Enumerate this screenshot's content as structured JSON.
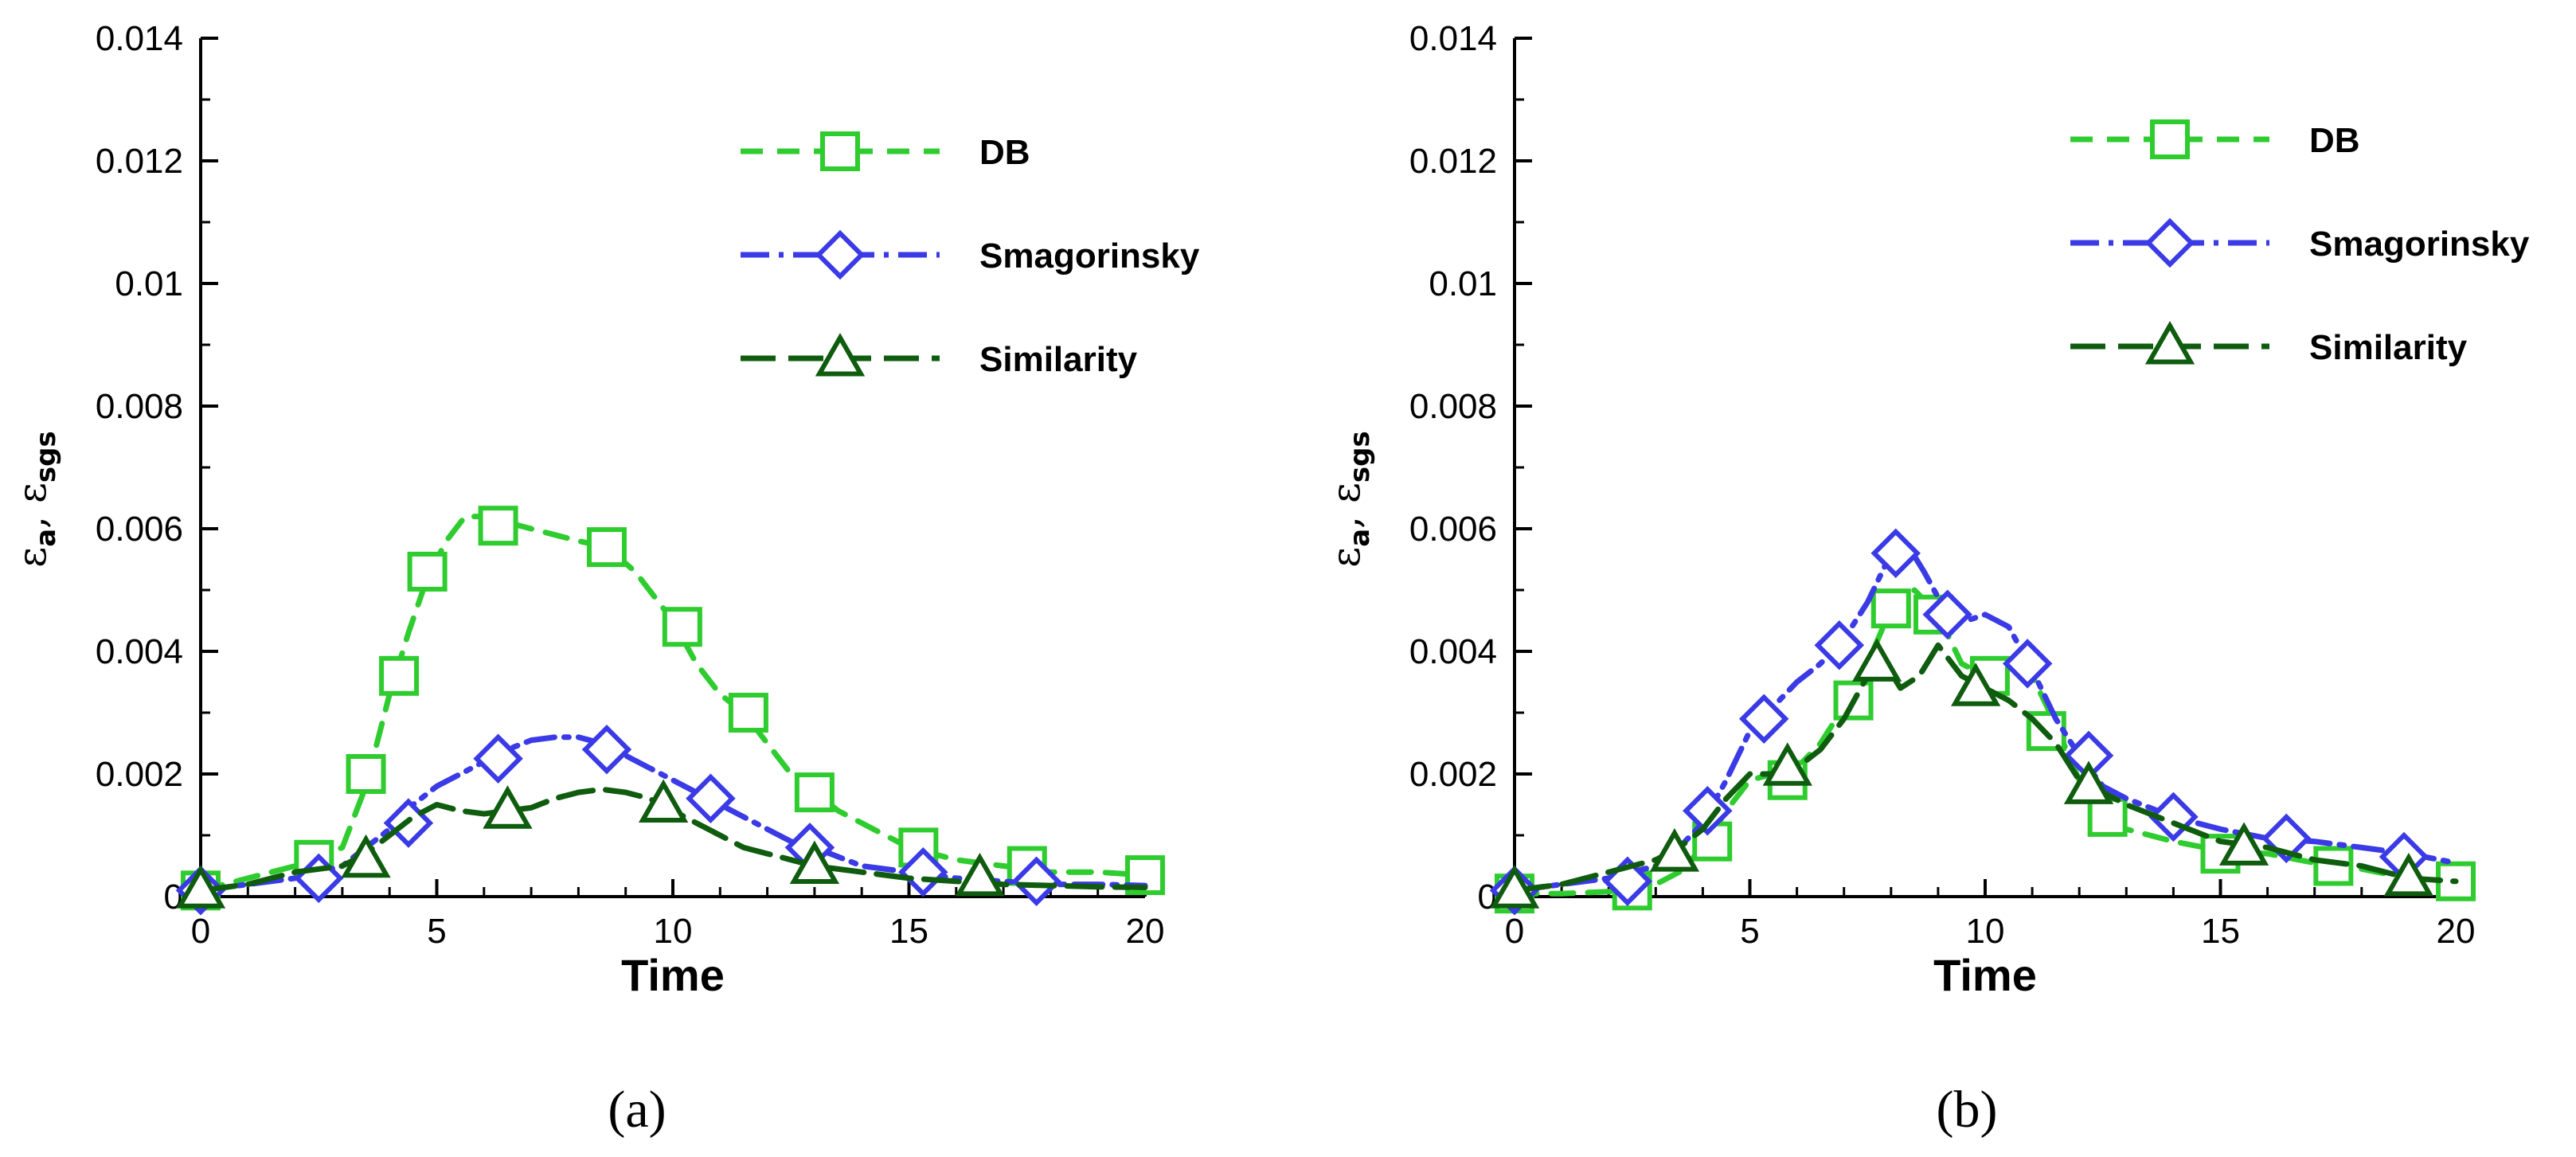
{
  "chart_data": [
    {
      "type": "line",
      "panel": "a",
      "caption": "(a)",
      "xlabel": "Time",
      "ylabel_symbol": "ε",
      "ylabel_sub1": "a",
      "ylabel_sep": ", ",
      "ylabel_sub2": "sgs",
      "xlim": [
        0,
        20
      ],
      "ylim": [
        0,
        0.014
      ],
      "xticks": [
        0,
        5,
        10,
        20
      ],
      "xticks_all": [
        0,
        5,
        10,
        15,
        20
      ],
      "yticks": [
        0,
        0.002,
        0.004,
        0.006,
        0.008,
        0.01,
        0.012,
        0.014
      ],
      "ytick_labels": [
        "0",
        "0.002",
        "0.004",
        "0.006",
        "0.008",
        "0.01",
        "0.012",
        "0.014"
      ],
      "xtick_labels": [
        "0",
        "5",
        "10",
        "15",
        "20"
      ],
      "legend_position": "top-right",
      "series": [
        {
          "name": "DB",
          "color": "#2ecc2e",
          "dash": "28,18",
          "marker": "square",
          "x": [
            0,
            1,
            2,
            3,
            3.5,
            4,
            4.4,
            4.8,
            5.2,
            5.6,
            6,
            6.5,
            7,
            7.5,
            8,
            8.6,
            9.2,
            10,
            10.5,
            11,
            11.5,
            12,
            12.5,
            13,
            13.5,
            14,
            15,
            16,
            17,
            18,
            19,
            20
          ],
          "y": [
            0.0001,
            0.0003,
            0.0005,
            0.0008,
            0.0018,
            0.0033,
            0.0043,
            0.0052,
            0.0058,
            0.0062,
            0.0062,
            0.0061,
            0.006,
            0.0059,
            0.0058,
            0.0057,
            0.0053,
            0.0045,
            0.0038,
            0.0033,
            0.003,
            0.0025,
            0.002,
            0.0017,
            0.0014,
            0.0012,
            0.0008,
            0.0006,
            0.0005,
            0.0004,
            0.0004,
            0.00035
          ],
          "marker_x": [
            0,
            2.4,
            3.5,
            4.2,
            4.8,
            6.3,
            8.6,
            10.2,
            11.6,
            13,
            15.2,
            17.5,
            20
          ],
          "marker_y": [
            0.0001,
            0.0006,
            0.002,
            0.0036,
            0.0053,
            0.00605,
            0.0057,
            0.0044,
            0.003,
            0.0017,
            0.0008,
            0.0005,
            0.00035
          ]
        },
        {
          "name": "Smagorinsky",
          "color": "#3a3ae6",
          "dash": "36,12,6,12",
          "marker": "diamond",
          "x": [
            0,
            1,
            2,
            3,
            3.5,
            4,
            4.5,
            5,
            5.5,
            6,
            6.5,
            7,
            7.5,
            8,
            8.5,
            9,
            9.5,
            10,
            10.5,
            11,
            11.5,
            12,
            12.5,
            13,
            14,
            15,
            16,
            17,
            18,
            19,
            20
          ],
          "y": [
            0.0001,
            0.0002,
            0.0003,
            0.0005,
            0.0008,
            0.0011,
            0.0015,
            0.0018,
            0.002,
            0.0022,
            0.0024,
            0.00255,
            0.0026,
            0.0026,
            0.0025,
            0.0023,
            0.0021,
            0.0019,
            0.0017,
            0.0015,
            0.0013,
            0.0011,
            0.0009,
            0.0008,
            0.0005,
            0.0004,
            0.0003,
            0.00025,
            0.0002,
            0.0002,
            0.00018
          ],
          "marker_x": [
            0,
            2.5,
            4.4,
            6.3,
            8.6,
            10.8,
            12.9,
            15.3,
            17.7
          ],
          "marker_y": [
            0.0001,
            0.0003,
            0.0012,
            0.00225,
            0.0024,
            0.0016,
            0.0008,
            0.0004,
            0.00025
          ]
        },
        {
          "name": "Similarity",
          "color": "#0f5c0f",
          "dash": "44,16",
          "marker": "triangle",
          "x": [
            0,
            1,
            2,
            3,
            3.5,
            4,
            4.5,
            5,
            5.5,
            6,
            6.5,
            7,
            7.5,
            8,
            8.5,
            9,
            9.5,
            10,
            10.5,
            11,
            11.5,
            12,
            12.5,
            13,
            14,
            15,
            16,
            17,
            18,
            19,
            20
          ],
          "y": [
            0.0001,
            0.0002,
            0.0004,
            0.0005,
            0.0007,
            0.001,
            0.0013,
            0.0015,
            0.0014,
            0.00135,
            0.0014,
            0.00145,
            0.0016,
            0.0017,
            0.00175,
            0.0017,
            0.0016,
            0.0014,
            0.0012,
            0.001,
            0.0008,
            0.0007,
            0.0006,
            0.0005,
            0.0004,
            0.0003,
            0.00025,
            0.0002,
            0.00018,
            0.00016,
            0.00015
          ],
          "marker_x": [
            0,
            3.5,
            6.5,
            9.8,
            13,
            16.5
          ],
          "marker_y": [
            0.0001,
            0.0006,
            0.0014,
            0.0015,
            0.0005,
            0.0003
          ]
        }
      ]
    },
    {
      "type": "line",
      "panel": "b",
      "caption": "(b)",
      "xlabel": "Time",
      "ylabel_symbol": "ε",
      "ylabel_sub1": "a",
      "ylabel_sep": ", ",
      "ylabel_sub2": "sgs",
      "xlim": [
        0,
        20
      ],
      "ylim": [
        0,
        0.014
      ],
      "xticks_all": [
        0,
        5,
        10,
        15,
        20
      ],
      "yticks": [
        0,
        0.002,
        0.004,
        0.006,
        0.008,
        0.01,
        0.012,
        0.014
      ],
      "ytick_labels": [
        "0",
        "0.002",
        "0.004",
        "0.006",
        "0.008",
        "0.01",
        "0.012",
        "0.014"
      ],
      "xtick_labels": [
        "0",
        "5",
        "10",
        "15",
        "20"
      ],
      "legend_position": "top-right",
      "series": [
        {
          "name": "DB",
          "color": "#2ecc2e",
          "dash": "28,18",
          "marker": "square",
          "x": [
            0,
            1,
            2,
            2.5,
            3,
            3.5,
            4,
            4.5,
            5,
            5.5,
            6,
            6.5,
            7,
            7.5,
            8,
            8.5,
            9,
            9.5,
            10,
            10.5,
            11,
            11.5,
            12,
            12.5,
            13,
            14,
            15,
            16,
            17,
            18,
            19,
            20
          ],
          "y": [
            5e-05,
            5e-05,
            8e-05,
            0.0001,
            0.0002,
            0.0004,
            0.0008,
            0.0014,
            0.0019,
            0.002,
            0.0021,
            0.0025,
            0.0031,
            0.0038,
            0.0047,
            0.005,
            0.0046,
            0.0038,
            0.0036,
            0.0037,
            0.0036,
            0.0028,
            0.0019,
            0.0014,
            0.0011,
            0.0009,
            0.00075,
            0.0007,
            0.00055,
            0.00045,
            0.0003,
            0.00025
          ],
          "marker_x": [
            0,
            2.5,
            4.2,
            5.8,
            7.2,
            8,
            8.9,
            10.1,
            11.3,
            12.6,
            15,
            17.4,
            20
          ],
          "marker_y": [
            5e-05,
            0.0001,
            0.0009,
            0.0019,
            0.0032,
            0.0047,
            0.0046,
            0.0036,
            0.0027,
            0.0013,
            0.0007,
            0.0005,
            0.00025
          ]
        },
        {
          "name": "Smagorinsky",
          "color": "#3a3ae6",
          "dash": "36,12,6,12",
          "marker": "diamond",
          "x": [
            0,
            1,
            2,
            3,
            3.5,
            4,
            4.5,
            5,
            5.5,
            6,
            6.5,
            7,
            7.5,
            8,
            8.3,
            8.7,
            9.2,
            9.6,
            10,
            10.5,
            11,
            11.5,
            12,
            12.5,
            13,
            14,
            15,
            16,
            17,
            18,
            19,
            20
          ],
          "y": [
            0.0001,
            0.0002,
            0.0003,
            0.0005,
            0.0008,
            0.0012,
            0.0019,
            0.0027,
            0.0031,
            0.0035,
            0.0038,
            0.0042,
            0.0048,
            0.0056,
            0.0058,
            0.0053,
            0.0046,
            0.0045,
            0.0046,
            0.0044,
            0.0037,
            0.0029,
            0.0023,
            0.0018,
            0.0016,
            0.0013,
            0.0011,
            0.00095,
            0.0009,
            0.0008,
            0.0007,
            0.00055
          ],
          "marker_x": [
            0,
            2.4,
            4.1,
            5.3,
            6.9,
            8.1,
            9.2,
            10.9,
            12.2,
            14,
            16.4,
            18.9
          ],
          "marker_y": [
            0.0001,
            0.00025,
            0.0014,
            0.0029,
            0.0041,
            0.0056,
            0.0046,
            0.0038,
            0.0023,
            0.0013,
            0.00095,
            0.00065
          ]
        },
        {
          "name": "Similarity",
          "color": "#0f5c0f",
          "dash": "44,16",
          "marker": "triangle",
          "x": [
            0,
            1,
            2,
            3,
            3.5,
            4,
            4.5,
            5,
            5.5,
            6,
            6.5,
            7,
            7.5,
            7.8,
            8.2,
            8.6,
            9,
            9.5,
            10,
            10.5,
            11,
            11.5,
            12,
            12.5,
            13,
            14,
            15,
            16,
            17,
            18,
            19,
            20
          ],
          "y": [
            0.0001,
            0.0002,
            0.0004,
            0.0006,
            0.0008,
            0.0011,
            0.0016,
            0.002,
            0.002,
            0.0021,
            0.0024,
            0.0029,
            0.0036,
            0.0039,
            0.0034,
            0.0036,
            0.0041,
            0.0036,
            0.0034,
            0.0032,
            0.0029,
            0.0025,
            0.0019,
            0.0017,
            0.0015,
            0.0012,
            0.0009,
            0.0008,
            0.0006,
            0.0005,
            0.0003,
            0.00025
          ],
          "marker_x": [
            0,
            3.4,
            5.8,
            7.7,
            9.8,
            12.2,
            15.5,
            19
          ],
          "marker_y": [
            0.0001,
            0.0007,
            0.0021,
            0.0038,
            0.0034,
            0.0018,
            0.0008,
            0.0003
          ]
        }
      ]
    }
  ]
}
